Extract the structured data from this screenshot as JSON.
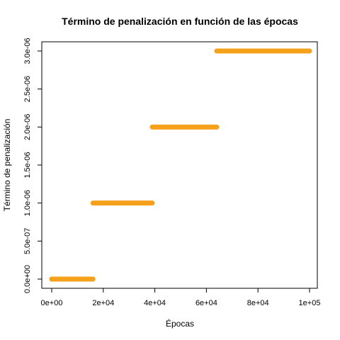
{
  "chart_data": {
    "type": "scatter",
    "title": "Término de penalización en función de las épocas",
    "xlabel": "Épocas",
    "ylabel": "Término de penalización",
    "xlim": [
      0,
      100000
    ],
    "ylim": [
      0,
      3e-06
    ],
    "x_ticks": [
      {
        "value": 0,
        "label": "0e+00"
      },
      {
        "value": 20000,
        "label": "2e+04"
      },
      {
        "value": 40000,
        "label": "4e+04"
      },
      {
        "value": 60000,
        "label": "6e+04"
      },
      {
        "value": 80000,
        "label": "8e+04"
      },
      {
        "value": 100000,
        "label": "1e+05"
      }
    ],
    "y_ticks": [
      {
        "value": 0,
        "label": "0.0e+00"
      },
      {
        "value": 5e-07,
        "label": "5.0e-07"
      },
      {
        "value": 1e-06,
        "label": "1.0e-06"
      },
      {
        "value": 1.5e-06,
        "label": "1.5e-06"
      },
      {
        "value": 2e-06,
        "label": "2.0e-06"
      },
      {
        "value": 2.5e-06,
        "label": "2.5e-06"
      },
      {
        "value": 3e-06,
        "label": "3.0e-06"
      }
    ],
    "color": "#f5a11c",
    "grid": false,
    "series": [
      {
        "x_start": 0,
        "x_end": 16000,
        "y": 0
      },
      {
        "x_start": 16000,
        "x_end": 39000,
        "y": 1e-06
      },
      {
        "x_start": 39000,
        "x_end": 64000,
        "y": 2e-06
      },
      {
        "x_start": 64000,
        "x_end": 100000,
        "y": 3e-06
      }
    ]
  }
}
